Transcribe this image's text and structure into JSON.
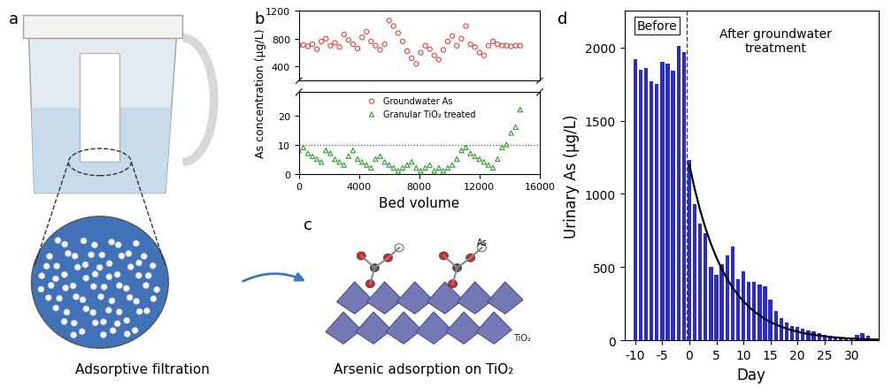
{
  "panel_a": {
    "panel": "a",
    "caption": "Adsorptive filtration"
  },
  "panel_c": {
    "panel": "c",
    "caption": "Arsenic adsorption on TiO₂",
    "labels": [
      "As",
      "TiO₂"
    ]
  },
  "chart_data": [
    {
      "panel": "b",
      "type": "scatter",
      "x_label": "Bed volume",
      "y_label": "As concentration (μg/L)",
      "x": [
        0,
        300,
        600,
        900,
        1200,
        1500,
        1800,
        2100,
        2400,
        2700,
        3000,
        3300,
        3600,
        3900,
        4200,
        4500,
        4800,
        5100,
        5400,
        5700,
        6000,
        6300,
        6600,
        6900,
        7200,
        7500,
        7800,
        8100,
        8400,
        8700,
        9000,
        9300,
        9600,
        9900,
        10200,
        10500,
        10800,
        11100,
        11400,
        11700,
        12000,
        12300,
        12600,
        12900,
        13200,
        13500,
        13800,
        14100,
        14400,
        14700
      ],
      "series": [
        {
          "name": "Groundwater As",
          "color": "#e8413c",
          "marker": "circle",
          "values": [
            700,
            710,
            690,
            720,
            650,
            760,
            800,
            700,
            740,
            680,
            860,
            780,
            720,
            660,
            820,
            900,
            760,
            700,
            640,
            720,
            1060,
            980,
            880,
            760,
            620,
            520,
            440,
            600,
            700,
            650,
            560,
            500,
            640,
            760,
            840,
            700,
            800,
            980,
            720,
            680,
            600,
            560,
            700,
            760,
            720,
            700,
            700,
            690,
            700,
            700
          ]
        },
        {
          "name": "Granular TiO₂ treated",
          "color": "#2ca02c",
          "marker": "triangle",
          "values": [
            8,
            9,
            7,
            6,
            5,
            4,
            8,
            7,
            5,
            4,
            3,
            6,
            8,
            5,
            4,
            3,
            2,
            5,
            6,
            4,
            3,
            2,
            1,
            2,
            3,
            4,
            2,
            1,
            2,
            3,
            1,
            2,
            1,
            2,
            3,
            5,
            8,
            9,
            7,
            6,
            5,
            4,
            3,
            2,
            5,
            9,
            10,
            14,
            16,
            22
          ]
        }
      ],
      "xlim": [
        0,
        16000
      ],
      "xticks": [
        0,
        4000,
        8000,
        12000,
        16000
      ],
      "y_segments": [
        {
          "ylim": [
            200,
            1200
          ],
          "yticks": [
            400,
            800,
            1200
          ]
        },
        {
          "ylim": [
            0,
            28
          ],
          "yticks": [
            0,
            10,
            20
          ]
        }
      ],
      "reference_line": 10,
      "legend": "upper center"
    },
    {
      "panel": "d",
      "type": "bar",
      "x_label": "Day",
      "y_label": "Urinary As (μg/L)",
      "x": [
        -10,
        -9,
        -8,
        -7,
        -6,
        -5,
        -4,
        -3,
        -2,
        -1,
        0,
        1,
        2,
        3,
        4,
        5,
        6,
        7,
        8,
        9,
        10,
        11,
        12,
        13,
        14,
        15,
        16,
        17,
        18,
        19,
        20,
        21,
        22,
        23,
        24,
        25,
        26,
        27,
        28,
        29,
        30,
        31,
        32,
        33
      ],
      "values": [
        1920,
        1850,
        1860,
        1770,
        1750,
        1900,
        1890,
        1840,
        2010,
        1970,
        1230,
        930,
        800,
        730,
        500,
        450,
        520,
        580,
        640,
        420,
        470,
        400,
        400,
        380,
        370,
        280,
        200,
        150,
        120,
        100,
        90,
        80,
        70,
        60,
        50,
        40,
        30,
        25,
        20,
        20,
        15,
        40,
        50,
        30
      ],
      "color": "#2b2bd0",
      "fit": {
        "x": [
          0,
          1,
          2,
          3,
          4,
          5,
          6,
          7,
          8,
          9,
          10,
          11,
          12,
          13,
          14,
          15,
          16,
          17,
          18,
          19,
          20,
          21,
          22,
          23,
          24,
          25,
          26,
          27,
          28,
          29,
          30,
          31,
          32,
          33,
          34,
          35
        ],
        "values": [
          1200,
          1033,
          889,
          765,
          659,
          567,
          488,
          420,
          361,
          311,
          268,
          230,
          198,
          171,
          147,
          126,
          109,
          94,
          81,
          69,
          60,
          51,
          44,
          38,
          33,
          28,
          24,
          21,
          18,
          15,
          13,
          11,
          10,
          8,
          7,
          6
        ],
        "color": "#000000"
      },
      "divider": -0.5,
      "annotations": [
        "Before",
        "After groundwater\ntreatment"
      ],
      "xlim": [
        -12,
        35
      ],
      "xticks": [
        -10,
        -5,
        0,
        5,
        10,
        15,
        20,
        25,
        30
      ],
      "ylim": [
        0,
        2250
      ],
      "yticks": [
        0,
        500,
        1000,
        1500,
        2000
      ]
    }
  ]
}
